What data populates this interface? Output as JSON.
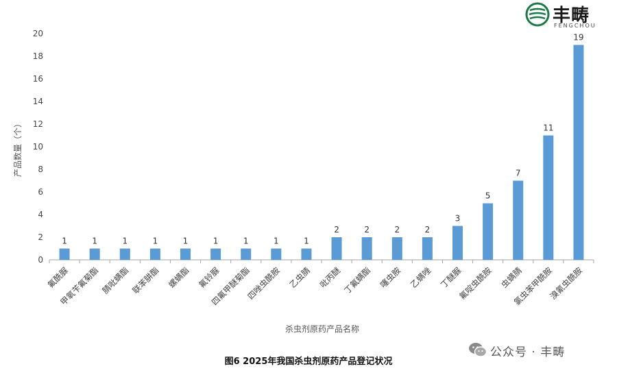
{
  "brand": {
    "name_cn": "丰畴",
    "name_en": "FENGCHOU",
    "color": "#1a7a44"
  },
  "caption": "图6 2025年我国杀虫剂原药产品登记状况",
  "watermark": {
    "text": "公众号 · 丰畴"
  },
  "chart_data": {
    "type": "bar",
    "xlabel": "杀虫剂原药产品名称",
    "ylabel": "产品数量（个）",
    "ylim": [
      0,
      20
    ],
    "yticks": [
      0,
      2,
      4,
      6,
      8,
      10,
      12,
      14,
      16,
      18,
      20
    ],
    "categories": [
      "氟酰脲",
      "甲氧苄氟菊酯",
      "腈吡螨酯",
      "联苯肼酯",
      "螺螨酯",
      "氟铃脲",
      "四氟甲醚菊酯",
      "四唑虫酰胺",
      "乙虫腈",
      "吡丙醚",
      "丁氟螨酯",
      "噻虫胺",
      "乙螨唑",
      "丁醚脲",
      "氟啶虫酰胺",
      "虫螨腈",
      "氯虫苯甲酰胺",
      "溴氰虫酰胺"
    ],
    "values": [
      1,
      1,
      1,
      1,
      1,
      1,
      1,
      1,
      1,
      2,
      2,
      2,
      2,
      3,
      5,
      7,
      11,
      19
    ],
    "bar_color": "#5b9bd5",
    "grid": false,
    "legend": "none"
  }
}
